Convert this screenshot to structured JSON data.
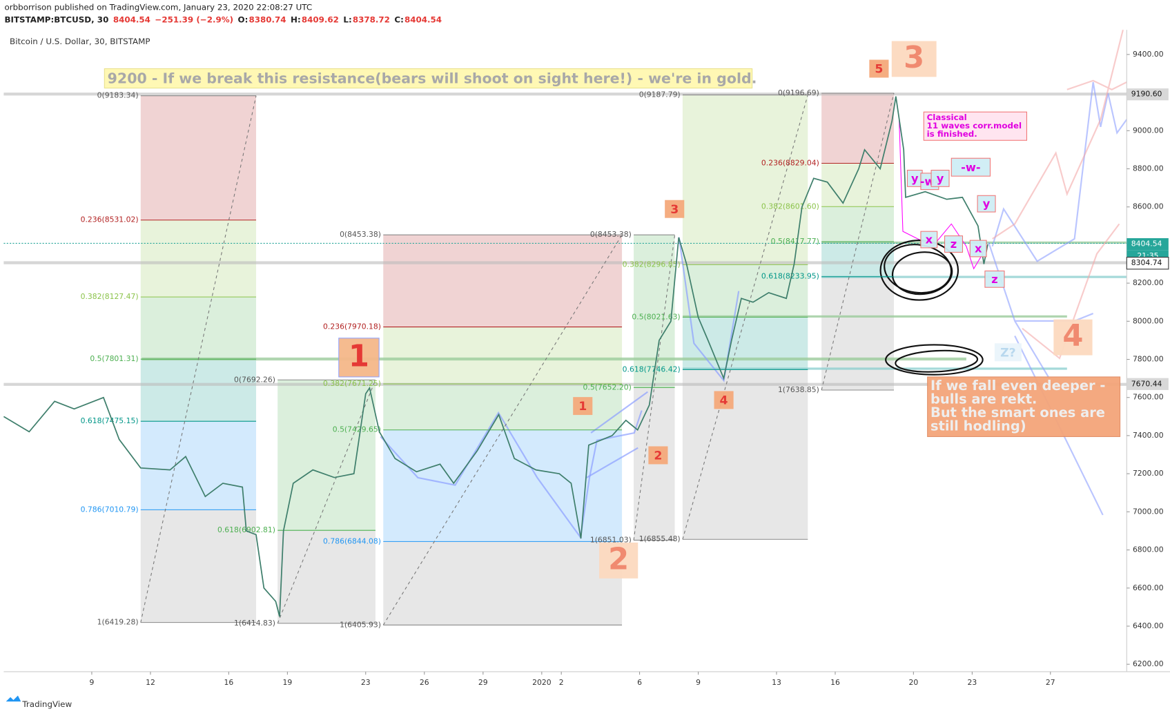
{
  "header": {
    "published": "orbborrison published on TradingView.com, January 23, 2020 22:08:27 UTC",
    "symbol": "BITSTAMP:BTCUSD, 30",
    "last": "8404.54",
    "change": "−251.39 (−2.9%)",
    "ohlc": [
      {
        "label": "O:",
        "value": "8380.74"
      },
      {
        "label": "H:",
        "value": "8409.62"
      },
      {
        "label": "L:",
        "value": "8378.72"
      },
      {
        "label": "C:",
        "value": "8404.54"
      }
    ],
    "footer": "TradingView"
  },
  "chart_data": {
    "type": "line",
    "title": "Bitcoin / U.S. Dollar, 30, BITSTAMP",
    "color": "#3f7f6c",
    "x": [
      -4.5,
      -3.2,
      -1.9,
      -0.9,
      0.6,
      1.4,
      2.5,
      4.0,
      4.8,
      5.8,
      6.7,
      7.7,
      7.9,
      8.4,
      8.8,
      9.4,
      9.6,
      9.8,
      10.3,
      11.3,
      12.4,
      13.4,
      14.0,
      14.2,
      14.7,
      15.5,
      16.6,
      17.8,
      18.5,
      19.7,
      20.8,
      21.6,
      22.7,
      23.9,
      24.5,
      25.0,
      25.4,
      26.6,
      27.3,
      27.9,
      28.5,
      29.0,
      29.6,
      30.0,
      30.4,
      31.0,
      31.5,
      32.3,
      32.7,
      33.2,
      33.8,
      34.6,
      35.5,
      35.9,
      36.3,
      36.9,
      37.6,
      38.4,
      39.2,
      39.5,
      40.3,
      40.9,
      41.1,
      41.5,
      41.6,
      42.6,
      43.7,
      44.5,
      45.3,
      45.6,
      45.8
    ],
    "values": [
      7500,
      7420,
      7580,
      7540,
      7600,
      7380,
      7230,
      7220,
      7290,
      7080,
      7150,
      7130,
      6900,
      6880,
      6600,
      6530,
      6450,
      6900,
      7150,
      7220,
      7180,
      7200,
      7620,
      7650,
      7420,
      7280,
      7210,
      7250,
      7150,
      7320,
      7510,
      7280,
      7220,
      7200,
      7150,
      6860,
      7350,
      7400,
      7480,
      7430,
      7560,
      7900,
      8000,
      8440,
      8300,
      8020,
      7900,
      7700,
      7900,
      8120,
      8100,
      8150,
      8120,
      8300,
      8600,
      8750,
      8730,
      8620,
      8800,
      8900,
      8800,
      9050,
      9180,
      8900,
      8650,
      8680,
      8640,
      8650,
      8500,
      8300,
      8404
    ],
    "xlim": [
      -4.5,
      52.9
    ],
    "ylim": [
      6161,
      9529
    ],
    "xticks": [
      {
        "value": 0,
        "label": "9"
      },
      {
        "value": 3,
        "label": "12"
      },
      {
        "value": 7,
        "label": "16"
      },
      {
        "value": 10,
        "label": "19"
      },
      {
        "value": 14,
        "label": "23"
      },
      {
        "value": 17,
        "label": "26"
      },
      {
        "value": 20,
        "label": "29"
      },
      {
        "value": 23,
        "label": "2020"
      },
      {
        "value": 24,
        "label": "2"
      },
      {
        "value": 28,
        "label": "6"
      },
      {
        "value": 31,
        "label": "9"
      },
      {
        "value": 35,
        "label": "13"
      },
      {
        "value": 38,
        "label": "16"
      },
      {
        "value": 42,
        "label": "20"
      },
      {
        "value": 45,
        "label": "23"
      },
      {
        "value": 49,
        "label": "27"
      }
    ],
    "yticks": [
      {
        "value": 6200,
        "label": "6200.00"
      },
      {
        "value": 6400,
        "label": "6400.00"
      },
      {
        "value": 6600,
        "label": "6600.00"
      },
      {
        "value": 6800,
        "label": "6800.00"
      },
      {
        "value": 7000,
        "label": "7000.00"
      },
      {
        "value": 7200,
        "label": "7200.00"
      },
      {
        "value": 7400,
        "label": "7400.00"
      },
      {
        "value": 7600,
        "label": "7600.00"
      },
      {
        "value": 7800,
        "label": "7800.00"
      },
      {
        "value": 8000,
        "label": "8000.00"
      },
      {
        "value": 8200,
        "label": "8200.00"
      },
      {
        "value": 8400,
        "label": "8400.00"
      },
      {
        "value": 8600,
        "label": "8600.00"
      },
      {
        "value": 8800,
        "label": "8800.00"
      },
      {
        "value": 9000,
        "label": "9000.00"
      },
      {
        "value": 9200,
        "label": "9200.00"
      },
      {
        "value": 9400,
        "label": "9400.00"
      }
    ],
    "price_tags": [
      {
        "value": 9190.6,
        "label": "9190.60",
        "color": "#d8d8d8"
      },
      {
        "value": 8404.54,
        "label": "8404.54",
        "color": "#26a69a"
      },
      {
        "value": 8304.74,
        "label": "8304.74",
        "color": "#ffffff"
      },
      {
        "value": 7670.44,
        "label": "7670.44",
        "color": "#d8d8d8"
      }
    ],
    "countdown": "21:35",
    "fibs": [
      {
        "x0": 2.5,
        "x1": 8.4,
        "levels": [
          {
            "value": 9183.34,
            "label": "0(9183.34)",
            "color": "#888888"
          },
          {
            "value": 8531.02,
            "label": "0.236(8531.02)",
            "color": "#b22222"
          },
          {
            "value": 8127.47,
            "label": "0.382(8127.47)",
            "color": "#8bc34a"
          },
          {
            "value": 7801.31,
            "label": "0.5(7801.31)",
            "color": "#4caf50"
          },
          {
            "value": 7475.15,
            "label": "0.618(7475.15)",
            "color": "#009688"
          },
          {
            "value": 7010.79,
            "label": "0.786(7010.79)",
            "color": "#2196f3"
          },
          {
            "value": 6419.28,
            "label": "1(6419.28)",
            "color": "#888888"
          }
        ]
      },
      {
        "x0": 9.5,
        "x1": 14.5,
        "levels": [
          {
            "value": 7692.26,
            "label": "0(7692.26)",
            "color": "#888888"
          },
          {
            "value": 6902.81,
            "label": "0.618(6902.81)",
            "color": "#4caf50"
          },
          {
            "value": 6414.83,
            "label": "1(6414.83)",
            "color": "#888888"
          }
        ]
      },
      {
        "x0": 14.9,
        "x1": 27.1,
        "levels": [
          {
            "value": 8453.38,
            "label": "0(8453.38)",
            "color": "#888888"
          },
          {
            "value": 7970.18,
            "label": "0.236(7970.18)",
            "color": "#b22222"
          },
          {
            "value": 7671.25,
            "label": "0.382(7671.25)",
            "color": "#8bc34a"
          },
          {
            "value": 7429.65,
            "label": "0.5(7429.65)",
            "color": "#4caf50"
          },
          {
            "value": 6844.08,
            "label": "0.786(6844.08)",
            "color": "#2196f3"
          },
          {
            "value": 6405.93,
            "label": "1(6405.93)",
            "color": "#888888"
          }
        ]
      },
      {
        "x0": 27.7,
        "x1": 29.8,
        "levels": [
          {
            "value": 8453.38,
            "label": "0(8453.38)",
            "color": "#888888"
          },
          {
            "value": 7652.2,
            "label": "0.5(7652.20)",
            "color": "#4caf50"
          },
          {
            "value": 6851.03,
            "label": "1(6851.03)",
            "color": "#888888"
          }
        ]
      },
      {
        "x0": 30.2,
        "x1": 36.6,
        "levels": [
          {
            "value": 9187.79,
            "label": "0(9187.79)",
            "color": "#888888"
          },
          {
            "value": 8296.85,
            "label": "0.382(8296.85)",
            "color": "#8bc34a"
          },
          {
            "value": 8021.63,
            "label": "0.5(8021.63)",
            "color": "#4caf50"
          },
          {
            "value": 7746.42,
            "label": "0.618(7746.42)",
            "color": "#009688"
          },
          {
            "value": 6855.48,
            "label": "1(6855.48)",
            "color": "#888888"
          }
        ]
      },
      {
        "x0": 37.3,
        "x1": 41.0,
        "levels": [
          {
            "value": 9196.69,
            "label": "0(9196.69)",
            "color": "#888888"
          },
          {
            "value": 8829.04,
            "label": "0.236(8829.04)",
            "color": "#b22222"
          },
          {
            "value": 8601.6,
            "label": "0.382(8601.60)",
            "color": "#8bc34a"
          },
          {
            "value": 8417.77,
            "label": "0.5(8417.77)",
            "color": "#4caf50"
          },
          {
            "value": 8233.95,
            "label": "0.618(8233.95)",
            "color": "#009688"
          },
          {
            "value": 7638.85,
            "label": "1(7638.85)",
            "color": "#888888"
          }
        ]
      }
    ],
    "annotations": [
      "9200 - If we break this resistance(bears will shoot on sight here!) - we're in gold.",
      "1",
      "2",
      "3",
      "4",
      "5",
      "3",
      "1",
      "2",
      "4",
      [
        "Classical",
        "11 waves corr.model",
        "is finished."
      ],
      "y",
      "-w-",
      "y",
      "x",
      "z",
      "-w-",
      "y",
      "x",
      "z",
      "Z?",
      [
        "If we fall even deeper -",
        "bulls are rekt.",
        "But the smart ones are",
        "still hodling)"
      ]
    ]
  }
}
